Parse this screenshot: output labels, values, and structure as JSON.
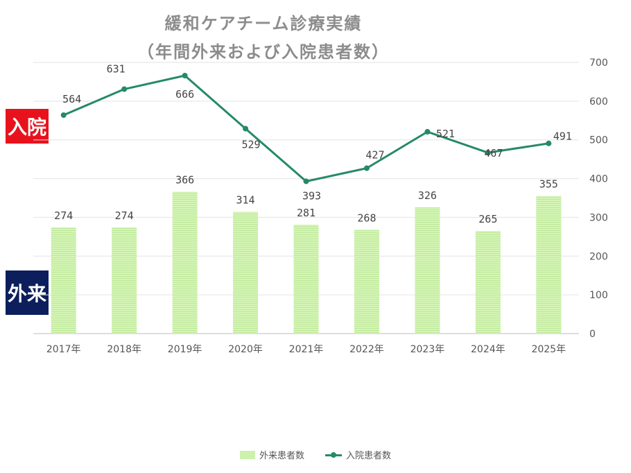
{
  "title_line1": "緩和ケアチーム診療実績",
  "title_line2": "（年間外来および入院患者数）",
  "side_labels": {
    "inpatient": "入院",
    "outpatient": "外来"
  },
  "colors": {
    "bar": "#cdf1ac",
    "line": "#25896b",
    "inpatient_label_bg": "#e8121d",
    "outpatient_label_bg": "#0c1f5c"
  },
  "chart_data": {
    "type": "bar",
    "categories": [
      "2017年",
      "2018年",
      "2019年",
      "2020年",
      "2021年",
      "2022年",
      "2023年",
      "2024年",
      "2025年"
    ],
    "series": [
      {
        "name": "外来患者数",
        "type": "bar",
        "values": [
          274,
          274,
          366,
          314,
          281,
          268,
          326,
          265,
          355
        ]
      },
      {
        "name": "入院患者数",
        "type": "line",
        "values": [
          564,
          631,
          666,
          529,
          393,
          427,
          521,
          467,
          491
        ]
      }
    ],
    "ylim": [
      0,
      700
    ],
    "yticks": [
      0,
      100,
      200,
      300,
      400,
      500,
      600,
      700
    ],
    "y_axis_position": "right",
    "grid": true,
    "legend": "bottom"
  }
}
